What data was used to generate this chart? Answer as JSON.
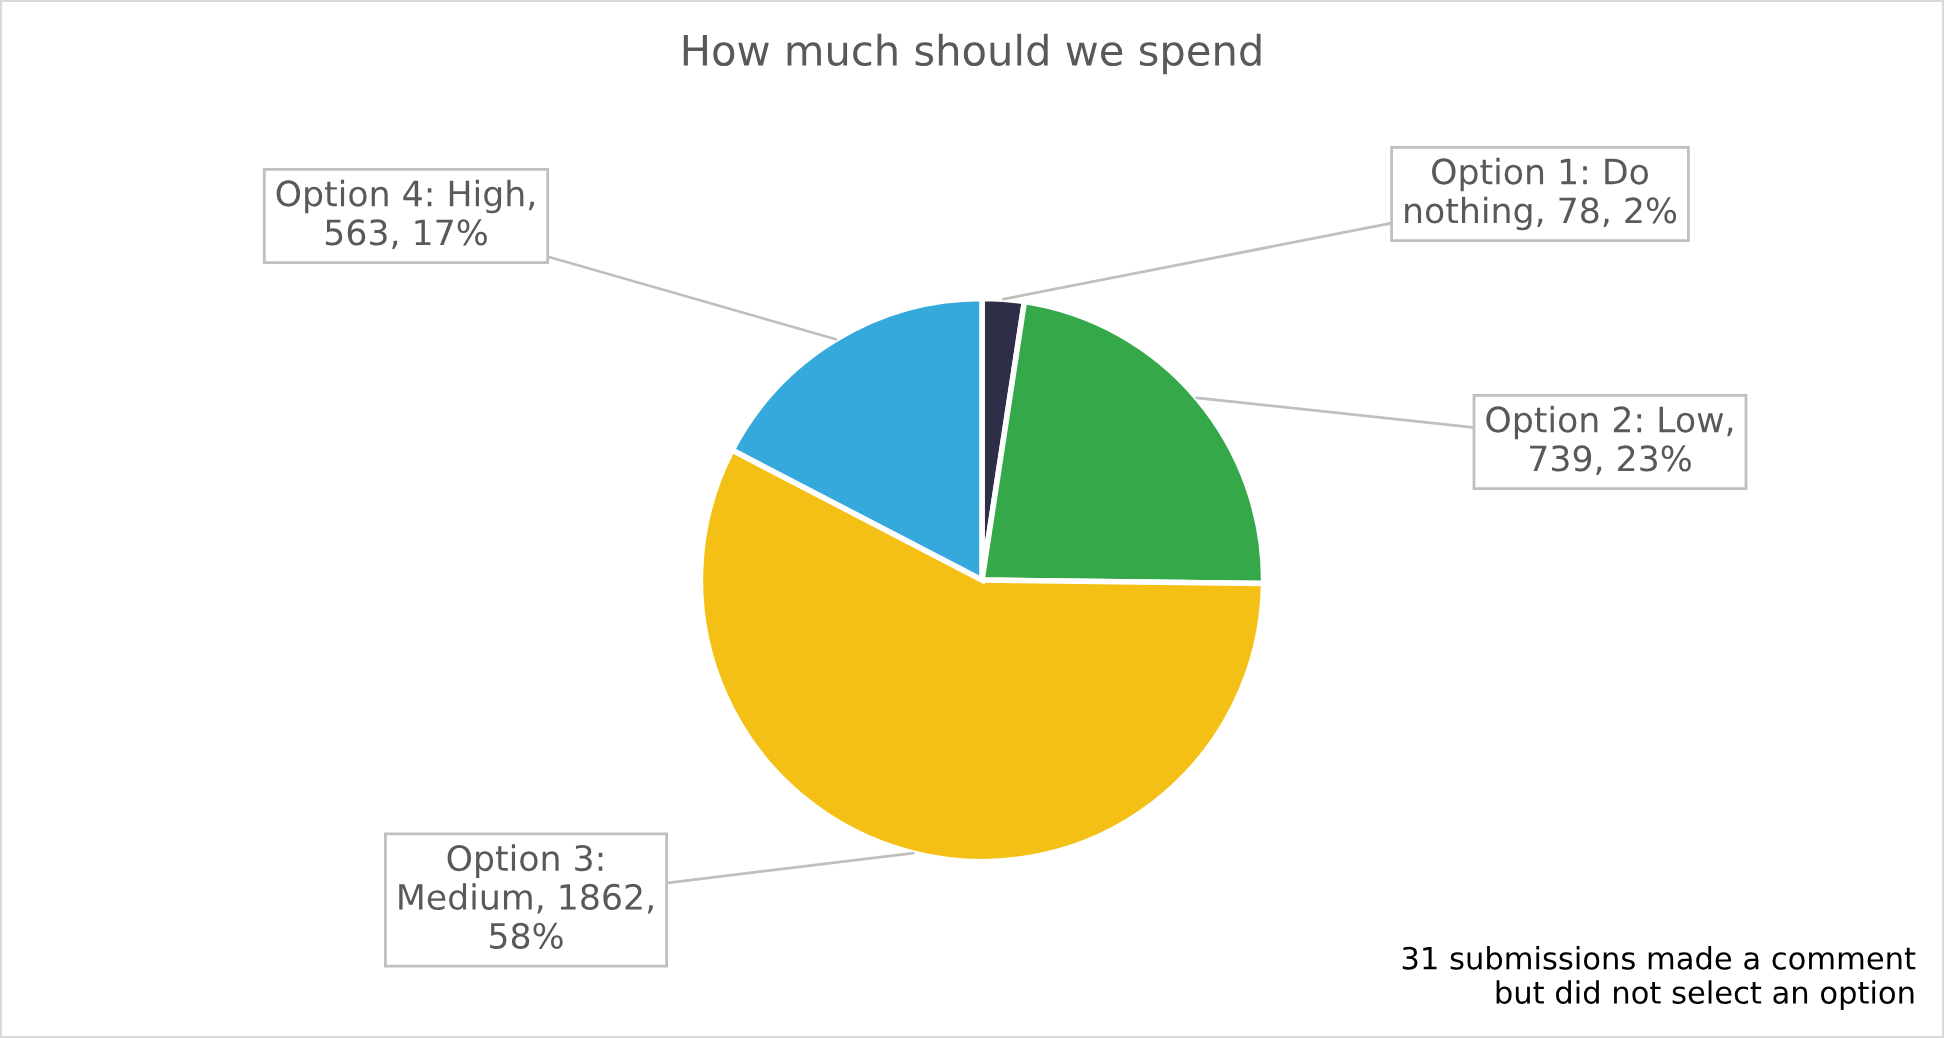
{
  "chart_data": {
    "type": "pie",
    "title": "How much should we spend",
    "categories": [
      "Option 1: Do nothing",
      "Option 2: Low",
      "Option 3: Medium",
      "Option 4: High"
    ],
    "values": [
      78,
      739,
      1862,
      563
    ],
    "colors": [
      "#2e2e48",
      "#35a94a",
      "#f4c015",
      "#35a8dc"
    ],
    "value_labels": [
      ", 78, 2%",
      ", 739, 23%",
      ", 1862, 58%",
      ", 563, 17%"
    ],
    "legend": false,
    "annotations": [
      "31 submissions made a comment\nbut did not select an option"
    ]
  }
}
